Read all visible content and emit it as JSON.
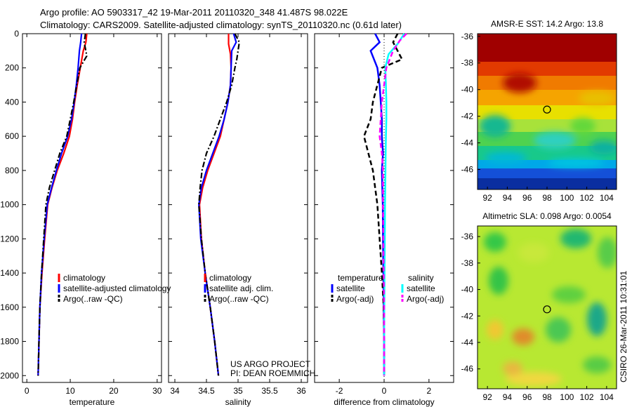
{
  "title": {
    "line1": "Argo profile: AO 5903317_42 19-Mar-2011 20110320_348 41.487S 98.022E",
    "line2": "Climatology: CARS2009. Satellite-adjusted climatology: synTS_20110320.nc (0.61d later)"
  },
  "colors": {
    "climatology": "#ff0000",
    "satellite": "#0000ff",
    "argo": "#000000",
    "salinity_sat": "#00ffff",
    "salinity_argo": "#ff00ff"
  },
  "chart_data": [
    {
      "type": "line",
      "name": "temperature-profile",
      "xlabel": "temperature",
      "xlim": [
        -1,
        31
      ],
      "ylim": [
        0,
        2040
      ],
      "xticks": [
        0,
        10,
        20,
        30
      ],
      "yticks": [
        0,
        200,
        400,
        600,
        800,
        1000,
        1200,
        1400,
        1600,
        1800,
        2000
      ],
      "y_reversed": true,
      "series": [
        {
          "name": "climatology",
          "color": "#ff0000",
          "dash": "solid",
          "x": [
            13.8,
            13.6,
            13.0,
            12.3,
            11.6,
            11.0,
            10.5,
            9.8,
            8.5,
            7.0,
            5.8,
            4.8,
            4.1,
            3.5,
            3.0,
            2.8,
            2.6
          ],
          "y": [
            0,
            50,
            100,
            200,
            300,
            400,
            500,
            600,
            700,
            800,
            900,
            1000,
            1200,
            1400,
            1600,
            1800,
            2000
          ]
        },
        {
          "name": "satellite-adjusted climatology",
          "color": "#0000ff",
          "dash": "solid",
          "x": [
            12.6,
            12.4,
            12.1,
            11.8,
            11.4,
            10.9,
            10.3,
            9.4,
            8.0,
            6.8,
            5.7,
            4.7,
            4.0,
            3.4,
            3.0,
            2.8,
            2.6
          ],
          "y": [
            0,
            50,
            100,
            200,
            300,
            400,
            500,
            600,
            700,
            800,
            900,
            1000,
            1200,
            1400,
            1600,
            1800,
            2000
          ]
        },
        {
          "name": "Argo(..raw -QC)",
          "color": "#000000",
          "dash": "dashdot",
          "x": [
            13.5,
            13.2,
            13.8,
            12.2,
            11.5,
            10.8,
            10.0,
            9.2,
            7.6,
            6.4,
            5.2,
            4.4,
            3.9,
            3.4,
            3.0,
            2.8,
            2.6
          ],
          "y": [
            0,
            50,
            130,
            200,
            300,
            400,
            500,
            600,
            700,
            800,
            900,
            1000,
            1200,
            1400,
            1600,
            1800,
            2000
          ]
        }
      ],
      "legend": [
        "climatology",
        "satellite-adjusted climatology",
        "Argo(..raw -QC)"
      ]
    },
    {
      "type": "line",
      "name": "salinity-profile",
      "xlabel": "salinity",
      "xlim": [
        33.9,
        36.1
      ],
      "ylim": [
        0,
        2040
      ],
      "xticks": [
        34,
        34.5,
        35,
        35.5,
        36
      ],
      "y_reversed": true,
      "series": [
        {
          "name": "climatology",
          "color": "#ff0000",
          "dash": "solid",
          "x": [
            34.85,
            34.85,
            34.88,
            34.89,
            34.88,
            34.84,
            34.78,
            34.72,
            34.62,
            34.52,
            34.44,
            34.39,
            34.42,
            34.48,
            34.56,
            34.63,
            34.69
          ],
          "y": [
            0,
            60,
            120,
            200,
            300,
            400,
            500,
            600,
            700,
            800,
            900,
            1000,
            1200,
            1400,
            1600,
            1800,
            2000
          ]
        },
        {
          "name": "satellite adj. clim.",
          "color": "#0000ff",
          "dash": "solid",
          "x": [
            34.93,
            34.97,
            34.9,
            34.89,
            34.88,
            34.84,
            34.78,
            34.7,
            34.6,
            34.5,
            34.42,
            34.38,
            34.41,
            34.48,
            34.56,
            34.63,
            34.69
          ],
          "y": [
            0,
            50,
            100,
            200,
            300,
            400,
            500,
            600,
            700,
            800,
            900,
            1000,
            1200,
            1400,
            1600,
            1800,
            2000
          ]
        },
        {
          "name": "Argo(..raw -QC)",
          "color": "#000000",
          "dash": "dashdot",
          "x": [
            34.95,
            35.02,
            34.98,
            34.95,
            34.9,
            34.82,
            34.72,
            34.62,
            34.5,
            34.43,
            34.4,
            34.38,
            34.42,
            34.48,
            34.56,
            34.63,
            34.69
          ],
          "y": [
            0,
            50,
            150,
            200,
            300,
            400,
            500,
            600,
            700,
            800,
            900,
            1000,
            1200,
            1400,
            1600,
            1800,
            2000
          ]
        }
      ],
      "legend": [
        "climatology",
        "satellite adj. clim.",
        "Argo(..raw -QC)"
      ],
      "annotation": [
        "US ARGO PROJECT",
        "PI: DEAN ROEMMICH"
      ]
    },
    {
      "type": "line",
      "name": "difference-profile",
      "xlabel": "difference from climatology",
      "xlim": [
        -3.1,
        3.1
      ],
      "ylim": [
        0,
        2040
      ],
      "xticks": [
        -2,
        0,
        2
      ],
      "y_reversed": true,
      "series": [
        {
          "name": "temperature satellite",
          "color": "#0000ff",
          "dash": "solid",
          "x": [
            -0.4,
            -0.2,
            -0.6,
            -0.3,
            -0.2,
            -0.15,
            -0.1,
            -0.1,
            -0.05,
            -0.1,
            -0.08,
            -0.06,
            -0.05,
            -0.03,
            -0.02,
            0,
            0
          ],
          "y": [
            0,
            50,
            100,
            200,
            300,
            400,
            500,
            600,
            700,
            800,
            900,
            1000,
            1200,
            1400,
            1600,
            1800,
            2000
          ]
        },
        {
          "name": "temperature Argo(-adj)",
          "color": "#000000",
          "dash": "dashed",
          "x": [
            0.6,
            0.4,
            0.8,
            -0.1,
            -0.3,
            -0.5,
            -0.6,
            -0.9,
            -0.7,
            -0.5,
            -0.4,
            -0.3,
            -0.2,
            -0.1,
            -0.02,
            0,
            0
          ],
          "y": [
            0,
            50,
            150,
            200,
            300,
            400,
            500,
            600,
            700,
            800,
            900,
            1000,
            1200,
            1400,
            1600,
            1800,
            2000
          ]
        },
        {
          "name": "salinity satellite",
          "color": "#00ffff",
          "dash": "solid",
          "x": [
            0.9,
            0.6,
            0.2,
            0.05,
            0.08,
            0.1,
            0.1,
            0.08,
            0.07,
            0.06,
            0.05,
            0.04,
            0.03,
            0.02,
            0.01,
            0,
            0
          ],
          "y": [
            0,
            60,
            120,
            200,
            300,
            400,
            500,
            600,
            700,
            800,
            900,
            1000,
            1200,
            1400,
            1600,
            1800,
            2000
          ]
        },
        {
          "name": "salinity Argo(-adj)",
          "color": "#ff00ff",
          "dash": "dashed",
          "x": [
            1.0,
            0.7,
            0.4,
            0.1,
            0.0,
            -0.1,
            -0.15,
            -0.2,
            -0.1,
            -0.05,
            -0.05,
            -0.05,
            -0.03,
            -0.02,
            0,
            0,
            0
          ],
          "y": [
            0,
            40,
            100,
            200,
            300,
            400,
            500,
            600,
            700,
            800,
            900,
            1000,
            1200,
            1400,
            1600,
            1800,
            2000
          ]
        }
      ],
      "legend_groups": [
        {
          "heading": "temperature",
          "items": [
            "satellite",
            "Argo(-adj)"
          ]
        },
        {
          "heading": "salinity",
          "items": [
            "satellite",
            "Argo(-adj)"
          ]
        }
      ]
    },
    {
      "type": "heatmap",
      "name": "amsre-sst-map",
      "title": "AMSR-E SST: 14.2 Argo: 13.8",
      "xlim": [
        91,
        105
      ],
      "ylim": [
        -47.5,
        -35.8
      ],
      "xticks": [
        92,
        94,
        96,
        98,
        100,
        102,
        104
      ],
      "yticks": [
        -36,
        -38,
        -40,
        -42,
        -44,
        -46
      ],
      "argo_point": {
        "lon": 98.0,
        "lat": -41.5
      }
    },
    {
      "type": "heatmap",
      "name": "altimetric-sla-map",
      "title": "Altimetric SLA: 0.098 Argo: 0.0054",
      "xlim": [
        91,
        105
      ],
      "ylim": [
        -47.5,
        -35.2
      ],
      "xticks": [
        92,
        94,
        96,
        98,
        100,
        102,
        104
      ],
      "yticks": [
        -36,
        -38,
        -40,
        -42,
        -44,
        -46
      ],
      "argo_point": {
        "lon": 98.0,
        "lat": -41.5
      }
    }
  ],
  "side_label": "CSIRO 26-Mar-2011 10:31:01"
}
